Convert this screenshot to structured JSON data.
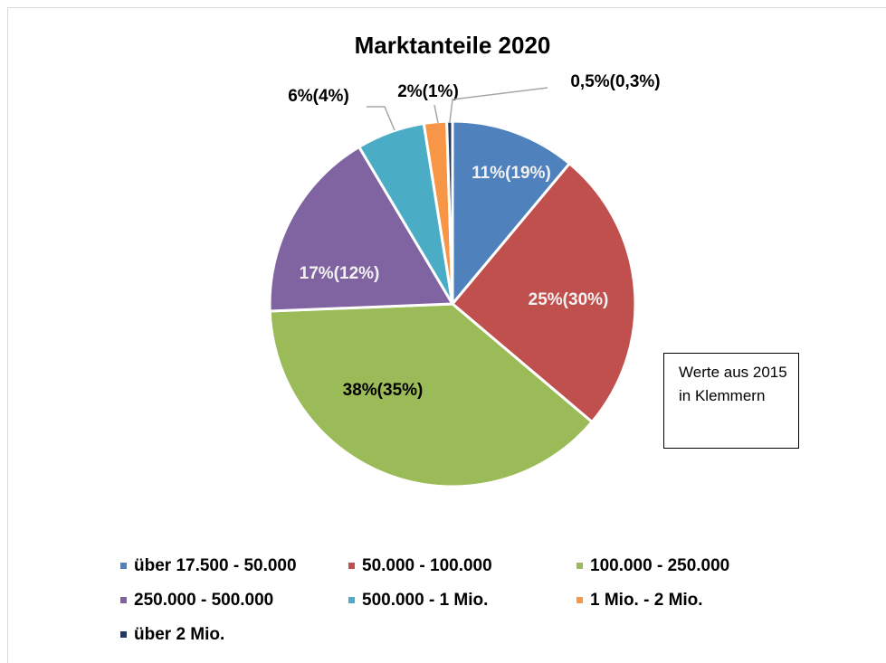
{
  "chart_data": {
    "type": "pie",
    "title": "Marktanteile 2020",
    "categories": [
      "über 17.500 - 50.000",
      "50.000 - 100.000",
      "100.000 - 250.000",
      "250.000 - 500.000",
      "500.000 - 1 Mio.",
      "1 Mio. - 2 Mio.",
      "über 2 Mio."
    ],
    "values": [
      11,
      25,
      38,
      17,
      6,
      2,
      0.5
    ],
    "value_labels": [
      "11%(19%)",
      "25%(30%)",
      "38%(35%)",
      "17%(12%)",
      "6%(4%)",
      "2%(1%)",
      "0,5%(0,3%)"
    ],
    "colors": [
      "#4f81bd",
      "#c0504d",
      "#9bbb59",
      "#8064a2",
      "#4bacc6",
      "#f79646",
      "#1f3864"
    ],
    "annotation": "Werte aus 2015 in Klemmern",
    "legend": "bottom"
  }
}
